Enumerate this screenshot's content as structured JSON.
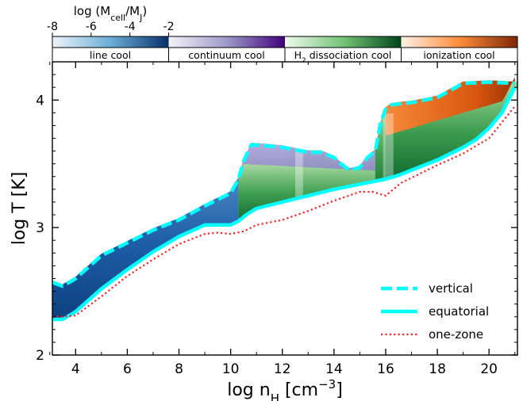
{
  "chart_data": {
    "type": "heatmap",
    "xlabel": "log n",
    "xlabel_sub": "H",
    "xlabel_unit": "[cm",
    "xlabel_sup": "−3",
    "xlabel_close": "]",
    "ylabel": "log T [K]",
    "xlim": [
      3.1,
      21.1
    ],
    "ylim": [
      2.0,
      4.3
    ],
    "x_ticks": [
      4,
      6,
      8,
      10,
      12,
      14,
      16,
      18,
      20
    ],
    "x_tick_labels": [
      "4",
      "6",
      "8",
      "10",
      "12",
      "14",
      "16",
      "18",
      "20"
    ],
    "y_ticks": [
      2,
      3,
      4
    ],
    "y_tick_labels": [
      "2",
      "3",
      "4"
    ],
    "colorbar": {
      "title_prefix": "log (M",
      "title_sub": "cell",
      "title_mid": "/M",
      "title_sub2": "J",
      "title_suffix": ")",
      "range": [
        -8,
        -2
      ],
      "ticks": [
        -8,
        -6,
        -4,
        -2
      ],
      "tick_labels": [
        "-8",
        "-6",
        "-4",
        "-2"
      ]
    },
    "cooling_bands": [
      {
        "label": "line cool",
        "color_low": "#eef3fa",
        "color_high": "#08306b",
        "x_from": 3.1,
        "x_to": 7.6
      },
      {
        "label": "continuum cool",
        "color_low": "#f4f2f8",
        "color_high": "#3f007d",
        "x_from": 7.6,
        "x_to": 12.1
      },
      {
        "label_prefix": "H",
        "label_sub": "2",
        "label": " dissociation cool",
        "color_low": "#f1faee",
        "color_high": "#00441b",
        "x_from": 12.1,
        "x_to": 16.6
      },
      {
        "label": "ionization cool",
        "color_low": "#fff2e6",
        "color_high": "#7f2704",
        "x_from": 16.6,
        "x_to": 21.1
      }
    ],
    "series": [
      {
        "name": "vertical",
        "style": "dashed",
        "color": "#00ffff",
        "x": [
          3.1,
          3.5,
          4.0,
          5.0,
          6.0,
          7.0,
          8.0,
          9.0,
          10.0,
          10.3,
          10.5,
          10.8,
          11.5,
          12.0,
          13.0,
          13.5,
          14.0,
          14.2,
          14.6,
          15.0,
          15.3,
          15.6,
          15.8,
          16.0,
          16.2,
          16.5,
          17.0,
          18.0,
          19.0,
          20.0,
          21.0
        ],
        "y": [
          2.57,
          2.54,
          2.6,
          2.78,
          2.88,
          2.98,
          3.06,
          3.17,
          3.27,
          3.38,
          3.52,
          3.65,
          3.64,
          3.63,
          3.59,
          3.59,
          3.55,
          3.51,
          3.45,
          3.47,
          3.55,
          3.6,
          3.82,
          3.93,
          3.96,
          3.97,
          3.98,
          4.02,
          4.13,
          4.14,
          4.13
        ]
      },
      {
        "name": "equatorial",
        "style": "solid",
        "color": "#00ffff",
        "x": [
          3.1,
          3.5,
          4.0,
          5.0,
          6.0,
          7.0,
          8.0,
          9.0,
          10.0,
          10.3,
          10.6,
          11.0,
          12.0,
          13.0,
          14.0,
          15.0,
          16.0,
          16.5,
          17.0,
          18.0,
          19.0,
          19.5,
          20.0,
          20.5,
          21.0
        ],
        "y": [
          2.28,
          2.28,
          2.34,
          2.52,
          2.67,
          2.81,
          2.93,
          3.02,
          3.02,
          3.05,
          3.1,
          3.15,
          3.2,
          3.25,
          3.3,
          3.34,
          3.38,
          3.41,
          3.45,
          3.53,
          3.63,
          3.69,
          3.78,
          3.9,
          4.1
        ]
      },
      {
        "name": "one-zone",
        "style": "dotted",
        "color": "#ff2020",
        "x": [
          3.1,
          3.5,
          4.0,
          5.0,
          6.0,
          7.0,
          8.0,
          9.0,
          9.5,
          10.0,
          10.5,
          11.0,
          12.0,
          13.0,
          14.0,
          15.0,
          15.5,
          16.0,
          16.3,
          16.6,
          17.0,
          18.0,
          19.0,
          20.0,
          21.0
        ],
        "y": [
          2.3,
          2.3,
          2.31,
          2.46,
          2.62,
          2.75,
          2.87,
          2.95,
          2.96,
          2.95,
          2.97,
          3.02,
          3.06,
          3.13,
          3.21,
          3.28,
          3.28,
          3.25,
          3.3,
          3.35,
          3.39,
          3.49,
          3.58,
          3.7,
          3.95
        ]
      }
    ],
    "legend": {
      "position": "lower-right",
      "entries": [
        "vertical",
        "equatorial",
        "one-zone"
      ]
    }
  }
}
